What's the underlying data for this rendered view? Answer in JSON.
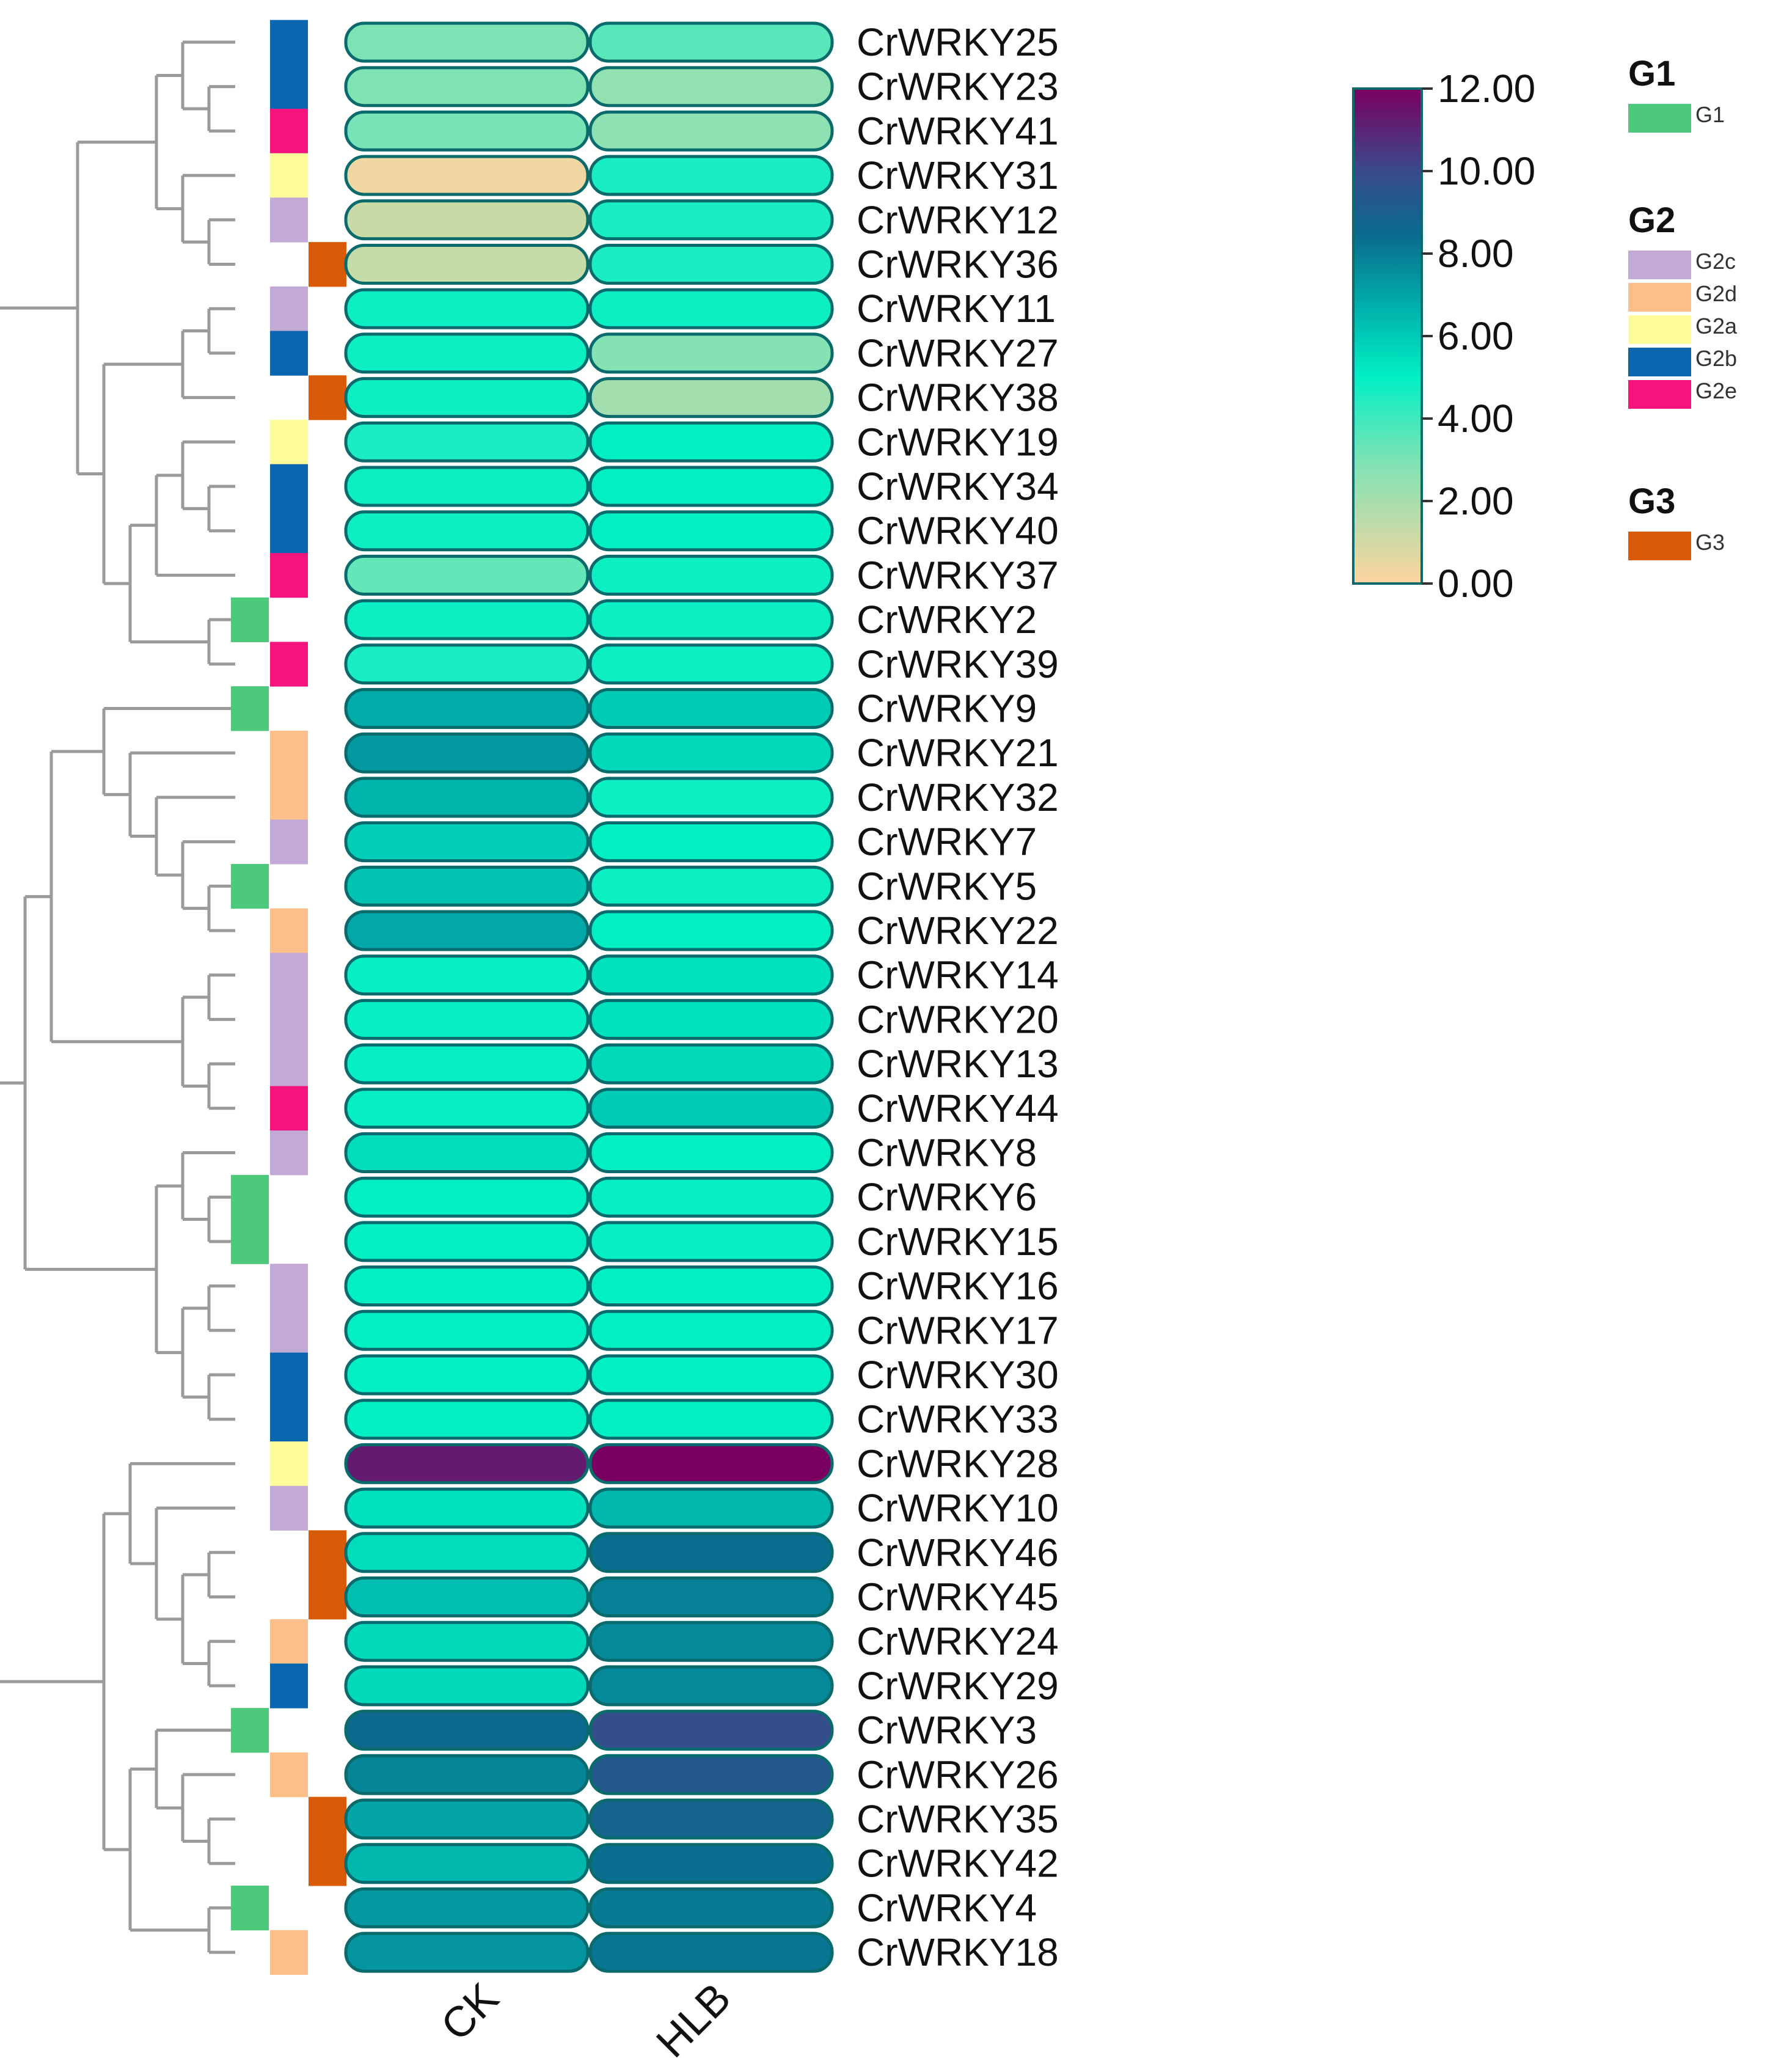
{
  "chart_data": {
    "type": "heatmap",
    "title": "",
    "columns": [
      "CK",
      "HLB"
    ],
    "rows": [
      {
        "gene": "CrWRKY25",
        "group": "G2b",
        "values": [
          3.0,
          3.6
        ]
      },
      {
        "gene": "CrWRKY23",
        "group": "G2b",
        "values": [
          2.9,
          2.5
        ]
      },
      {
        "gene": "CrWRKY41",
        "group": "G2e",
        "values": [
          3.1,
          2.6
        ]
      },
      {
        "gene": "CrWRKY31",
        "group": "G2a",
        "values": [
          0.3,
          4.6
        ]
      },
      {
        "gene": "CrWRKY12",
        "group": "G2c",
        "values": [
          1.2,
          4.6
        ]
      },
      {
        "gene": "CrWRKY36",
        "group": "G3",
        "values": [
          1.3,
          4.6
        ]
      },
      {
        "gene": "CrWRKY11",
        "group": "G2c",
        "values": [
          4.8,
          4.8
        ]
      },
      {
        "gene": "CrWRKY27",
        "group": "G2b",
        "values": [
          4.8,
          2.8
        ]
      },
      {
        "gene": "CrWRKY38",
        "group": "G3",
        "values": [
          4.8,
          2.1
        ]
      },
      {
        "gene": "CrWRKY19",
        "group": "G2a",
        "values": [
          4.6,
          5.0
        ]
      },
      {
        "gene": "CrWRKY34",
        "group": "G2b",
        "values": [
          4.8,
          5.0
        ]
      },
      {
        "gene": "CrWRKY40",
        "group": "G2b",
        "values": [
          4.8,
          5.0
        ]
      },
      {
        "gene": "CrWRKY37",
        "group": "G2e",
        "values": [
          3.4,
          4.8
        ]
      },
      {
        "gene": "CrWRKY2",
        "group": "G1",
        "values": [
          4.8,
          4.8
        ]
      },
      {
        "gene": "CrWRKY39",
        "group": "G2e",
        "values": [
          4.6,
          4.8
        ]
      },
      {
        "gene": "CrWRKY9",
        "group": "G1",
        "values": [
          6.8,
          6.0
        ]
      },
      {
        "gene": "CrWRKY21",
        "group": "G2d",
        "values": [
          7.3,
          5.6
        ]
      },
      {
        "gene": "CrWRKY32",
        "group": "G2d",
        "values": [
          6.6,
          4.8
        ]
      },
      {
        "gene": "CrWRKY7",
        "group": "G2c",
        "values": [
          5.9,
          5.0
        ]
      },
      {
        "gene": "CrWRKY5",
        "group": "G1",
        "values": [
          6.2,
          4.8
        ]
      },
      {
        "gene": "CrWRKY22",
        "group": "G2d",
        "values": [
          6.9,
          5.0
        ]
      },
      {
        "gene": "CrWRKY14",
        "group": "G2c",
        "values": [
          4.9,
          5.4
        ]
      },
      {
        "gene": "CrWRKY20",
        "group": "G2c",
        "values": [
          4.9,
          5.4
        ]
      },
      {
        "gene": "CrWRKY13",
        "group": "G2c",
        "values": [
          4.9,
          5.6
        ]
      },
      {
        "gene": "CrWRKY44",
        "group": "G2e",
        "values": [
          4.9,
          6.0
        ]
      },
      {
        "gene": "CrWRKY8",
        "group": "G2c",
        "values": [
          5.5,
          5.0
        ]
      },
      {
        "gene": "CrWRKY6",
        "group": "G1",
        "values": [
          5.0,
          4.9
        ]
      },
      {
        "gene": "CrWRKY15",
        "group": "G1",
        "values": [
          5.0,
          4.9
        ]
      },
      {
        "gene": "CrWRKY16",
        "group": "G2c",
        "values": [
          5.0,
          5.0
        ]
      },
      {
        "gene": "CrWRKY17",
        "group": "G2c",
        "values": [
          5.0,
          5.0
        ]
      },
      {
        "gene": "CrWRKY30",
        "group": "G2b",
        "values": [
          5.0,
          5.0
        ]
      },
      {
        "gene": "CrWRKY33",
        "group": "G2b",
        "values": [
          5.0,
          5.0
        ]
      },
      {
        "gene": "CrWRKY28",
        "group": "G2a",
        "values": [
          11.3,
          12.0
        ]
      },
      {
        "gene": "CrWRKY10",
        "group": "G2c",
        "values": [
          5.4,
          6.5
        ]
      },
      {
        "gene": "CrWRKY46",
        "group": "G3",
        "values": [
          5.5,
          8.4
        ]
      },
      {
        "gene": "CrWRKY45",
        "group": "G3",
        "values": [
          6.3,
          7.9
        ]
      },
      {
        "gene": "CrWRKY24",
        "group": "G2d",
        "values": [
          5.6,
          7.7
        ]
      },
      {
        "gene": "CrWRKY29",
        "group": "G2b",
        "values": [
          5.6,
          7.7
        ]
      },
      {
        "gene": "CrWRKY3",
        "group": "G1",
        "values": [
          8.6,
          9.8
        ]
      },
      {
        "gene": "CrWRKY26",
        "group": "G2d",
        "values": [
          7.8,
          9.3
        ]
      },
      {
        "gene": "CrWRKY35",
        "group": "G3",
        "values": [
          7.0,
          8.8
        ]
      },
      {
        "gene": "CrWRKY42",
        "group": "G3",
        "values": [
          6.5,
          8.4
        ]
      },
      {
        "gene": "CrWRKY4",
        "group": "G1",
        "values": [
          7.3,
          8.1
        ]
      },
      {
        "gene": "CrWRKY18",
        "group": "G2d",
        "values": [
          7.4,
          8.2
        ]
      }
    ],
    "color_scale": {
      "min": 0.0,
      "max": 12.0,
      "ticks": [
        "0.00",
        "2.00",
        "4.00",
        "6.00",
        "8.00",
        "10.00",
        "12.00"
      ],
      "stops": [
        {
          "value": 0.0,
          "color": "#fdd49e"
        },
        {
          "value": 3.0,
          "color": "#7ce3b5"
        },
        {
          "value": 5.0,
          "color": "#00f0c4"
        },
        {
          "value": 6.5,
          "color": "#00b8ae"
        },
        {
          "value": 8.5,
          "color": "#0a6a8e"
        },
        {
          "value": 10.0,
          "color": "#3a4a8c"
        },
        {
          "value": 12.0,
          "color": "#7a0060"
        }
      ]
    },
    "legend": [
      {
        "title": "G1",
        "items": [
          {
            "label": "G1",
            "color": "#4cc97a"
          }
        ]
      },
      {
        "title": "G2",
        "items": [
          {
            "label": "G2c",
            "color": "#c3aad6"
          },
          {
            "label": "G2d",
            "color": "#fdbf8a"
          },
          {
            "label": "G2a",
            "color": "#fdfb9a"
          },
          {
            "label": "G2b",
            "color": "#0a66ae"
          },
          {
            "label": "G2e",
            "color": "#f5137e"
          }
        ]
      },
      {
        "title": "G3",
        "items": [
          {
            "label": "G3",
            "color": "#d95b07"
          }
        ]
      }
    ],
    "group_colors": {
      "G1": "#4cc97a",
      "G2a": "#fdfb9a",
      "G2b": "#0a66ae",
      "G2c": "#c3aad6",
      "G2d": "#fdbf8a",
      "G2e": "#f5137e",
      "G3": "#d95b07"
    },
    "group_columns": {
      "G1": "left",
      "G2a": "middle",
      "G2b": "middle",
      "G2c": "middle",
      "G2d": "middle",
      "G2e": "middle",
      "G3": "right"
    }
  }
}
